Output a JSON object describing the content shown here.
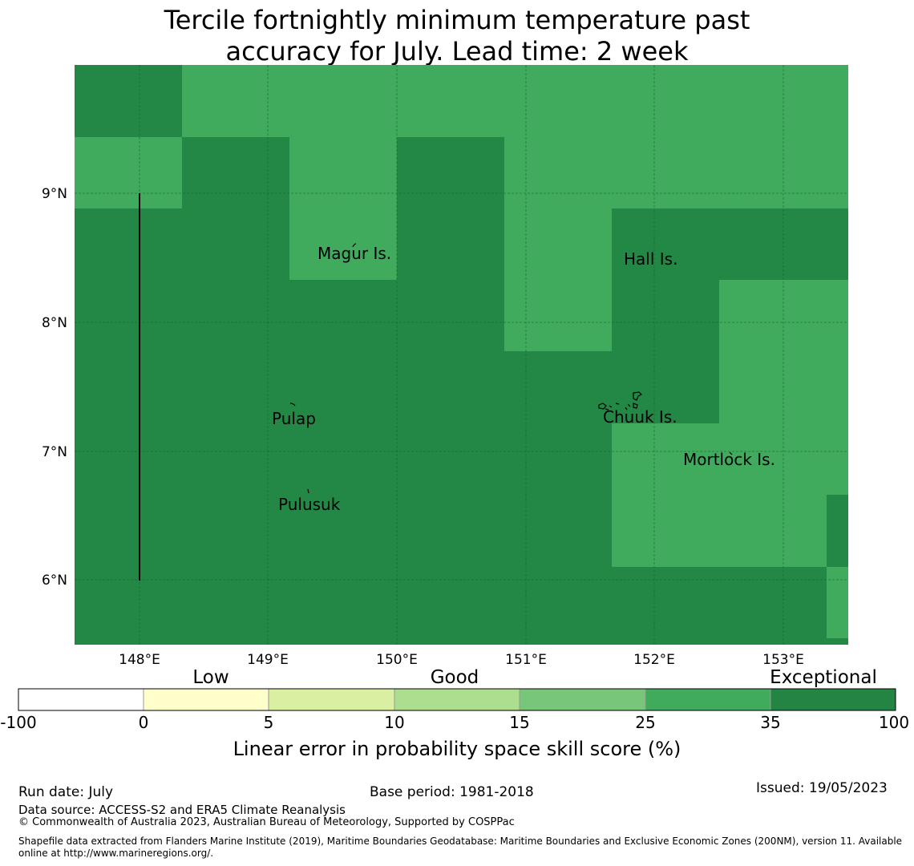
{
  "title_line1": "Tercile fortnightly minimum temperature past",
  "title_line2": "accuracy for July. Lead time: 2 week",
  "colors": {
    "exceptional_dark": "#238845",
    "exceptional_light": "#40ab5d",
    "gridline": "#1a5c2c",
    "colorbar": [
      "#ffffff",
      "#ffffcc",
      "#d9f0a3",
      "#addd8e",
      "#78c679",
      "#41ab5d",
      "#238443"
    ]
  },
  "map": {
    "lat_ticks": [
      "9°N",
      "8°N",
      "7°N",
      "6°N"
    ],
    "lon_ticks": [
      "148°E",
      "149°E",
      "150°E",
      "151°E",
      "152°E",
      "153°E"
    ],
    "places": [
      {
        "name": "Magur Is."
      },
      {
        "name": "Hall Is."
      },
      {
        "name": "Pulap"
      },
      {
        "name": "Chuuk Is."
      },
      {
        "name": "Mortlock Is."
      },
      {
        "name": "Pulusuk"
      }
    ]
  },
  "colorbar": {
    "categories": [
      "Low",
      "Good",
      "Exceptional"
    ],
    "ticks": [
      "-100",
      "0",
      "5",
      "10",
      "15",
      "25",
      "35",
      "100"
    ],
    "label": "Linear error in probability space skill score (%)"
  },
  "footer": {
    "run_date": "Run date: July",
    "base_period": "Base period: 1981-2018",
    "issued": "Issued: 19/05/2023",
    "data_source": "Data source: ACCESS-S2 and ERA5 Climate Reanalysis",
    "copyright": "© Commonwealth of Australia 2023, Australian Bureau of Meteorology, Supported by COSPPac",
    "shapefile": "Shapefile data extracted from Flanders Marine Institute (2019), Maritime Boundaries Geodatabase: Maritime Boundaries and Exclusive Economic Zones (200NM), version 11. Available online at http://www.marineregions.org/."
  }
}
